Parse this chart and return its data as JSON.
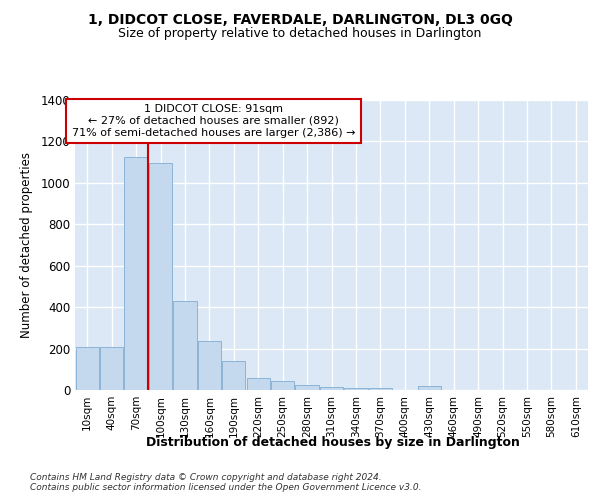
{
  "title": "1, DIDCOT CLOSE, FAVERDALE, DARLINGTON, DL3 0GQ",
  "subtitle": "Size of property relative to detached houses in Darlington",
  "xlabel": "Distribution of detached houses by size in Darlington",
  "ylabel": "Number of detached properties",
  "bar_color": "#c5d9ee",
  "bar_edge_color": "#8ab4d8",
  "plot_bg_color": "#dce8f5",
  "fig_bg_color": "#ffffff",
  "grid_color": "#ffffff",
  "categories": [
    "10sqm",
    "40sqm",
    "70sqm",
    "100sqm",
    "130sqm",
    "160sqm",
    "190sqm",
    "220sqm",
    "250sqm",
    "280sqm",
    "310sqm",
    "340sqm",
    "370sqm",
    "400sqm",
    "430sqm",
    "460sqm",
    "490sqm",
    "520sqm",
    "550sqm",
    "580sqm",
    "610sqm"
  ],
  "values": [
    210,
    210,
    1125,
    1095,
    430,
    238,
    140,
    60,
    43,
    25,
    15,
    10,
    12,
    0,
    18,
    0,
    0,
    0,
    0,
    0,
    0
  ],
  "ylim": [
    0,
    1400
  ],
  "yticks": [
    0,
    200,
    400,
    600,
    800,
    1000,
    1200,
    1400
  ],
  "vline_color": "#cc0000",
  "vline_x": 2.5,
  "annotation_title": "1 DIDCOT CLOSE: 91sqm",
  "annotation_line1": "← 27% of detached houses are smaller (892)",
  "annotation_line2": "71% of semi-detached houses are larger (2,386) →",
  "ann_box_fc": "#ffffff",
  "ann_box_ec": "#cc0000",
  "footer1": "Contains HM Land Registry data © Crown copyright and database right 2024.",
  "footer2": "Contains public sector information licensed under the Open Government Licence v3.0."
}
